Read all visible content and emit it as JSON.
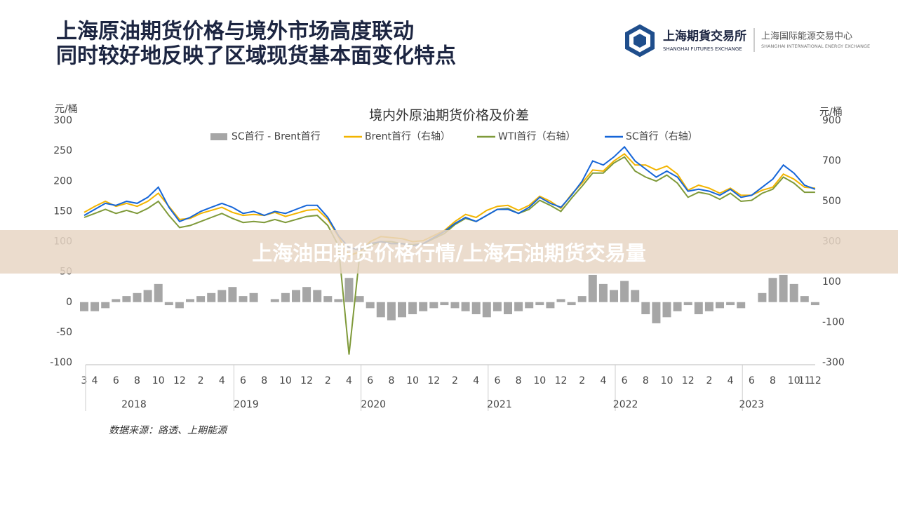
{
  "header": {
    "title_lines": [
      "上海原油期货价格与境外市场高度联动",
      "同时较好地反映了区域现货基本面变化特点"
    ],
    "logo_cn": "上海期貨交易所",
    "logo_en": "SHANGHAI FUTURES EXCHANGE",
    "ine_cn": "上海国际能源交易中心",
    "ine_en": "SHANGHAI INTERNATIONAL ENERGY EXCHANGE"
  },
  "chart_data": {
    "type": "combo",
    "title": "境内外原油期货价格及价差",
    "y_label": "元/桶",
    "y2_label": "元/桶",
    "categories": [
      "3",
      "4",
      null,
      "6",
      null,
      "8",
      null,
      "10",
      null,
      "12",
      null,
      "2",
      null,
      "4",
      null,
      "6",
      null,
      "8",
      null,
      "10",
      null,
      "12",
      null,
      "2",
      null,
      "4",
      null,
      "6",
      null,
      "8",
      null,
      "10",
      null,
      "12",
      null,
      "2",
      null,
      "4",
      null,
      "6",
      null,
      "8",
      null,
      "10",
      null,
      "12",
      null,
      "2",
      null,
      "4",
      null,
      "6",
      null,
      "8",
      null,
      "10",
      null,
      "12",
      null,
      "2",
      null,
      "4",
      null,
      "6",
      null,
      "8",
      null,
      "10",
      "11",
      "12"
    ],
    "years": [
      "2018",
      "2019",
      "2020",
      "2021",
      "2022",
      "2023"
    ],
    "ylim": [
      -100,
      300
    ],
    "yticks": [
      -100,
      -50,
      0,
      50,
      100,
      150,
      200,
      250,
      300
    ],
    "y2lim": [
      -300,
      900
    ],
    "y2ticks": [
      -300,
      -100,
      100,
      300,
      500,
      700,
      900
    ],
    "legend": "top",
    "series": [
      {
        "name": "SC首行 - Brent首行",
        "type": "bar",
        "color": "#a6a6a6",
        "values": [
          -15,
          -15,
          -10,
          5,
          10,
          15,
          20,
          30,
          -5,
          -10,
          5,
          10,
          15,
          20,
          25,
          10,
          15,
          0,
          5,
          15,
          20,
          25,
          20,
          10,
          5,
          40,
          10,
          -10,
          -25,
          -30,
          -25,
          -20,
          -15,
          -10,
          -5,
          -10,
          -15,
          -20,
          -25,
          -15,
          -20,
          -15,
          -10,
          -5,
          -10,
          5,
          -5,
          10,
          45,
          30,
          20,
          35,
          20,
          -20,
          -35,
          -25,
          -15,
          -5,
          -20,
          -15,
          -10,
          -5,
          -10,
          0,
          15,
          40,
          45,
          30,
          10,
          -5
        ]
      },
      {
        "name": "Brent首行（右轴）",
        "type": "line",
        "axis": "y2",
        "color": "#f2b400",
        "values": [
          445,
          475,
          500,
          475,
          490,
          475,
          500,
          540,
          475,
          410,
          415,
          440,
          455,
          470,
          445,
          430,
          435,
          430,
          445,
          425,
          440,
          455,
          460,
          410,
          325,
          230,
          250,
          300,
          325,
          320,
          315,
          300,
          305,
          330,
          355,
          400,
          435,
          420,
          455,
          475,
          480,
          455,
          480,
          525,
          500,
          465,
          535,
          590,
          655,
          650,
          700,
          735,
          680,
          680,
          655,
          675,
          635,
          555,
          580,
          565,
          540,
          565,
          530,
          530,
          555,
          570,
          635,
          610,
          570,
          565
        ]
      },
      {
        "name": "WTI首行（右轴）",
        "type": "line",
        "axis": "y2",
        "color": "#7f9a3a",
        "values": [
          420,
          440,
          460,
          440,
          455,
          440,
          465,
          500,
          430,
          370,
          380,
          400,
          420,
          440,
          415,
          395,
          400,
          395,
          410,
          395,
          410,
          425,
          430,
          380,
          280,
          -260,
          230,
          280,
          300,
          300,
          290,
          285,
          290,
          315,
          340,
          385,
          415,
          400,
          430,
          460,
          465,
          440,
          460,
          505,
          480,
          450,
          515,
          575,
          640,
          640,
          690,
          720,
          650,
          620,
          600,
          630,
          590,
          520,
          545,
          535,
          510,
          540,
          500,
          505,
          540,
          560,
          620,
          590,
          545,
          545
        ]
      },
      {
        "name": "SC首行（右轴）",
        "type": "line",
        "axis": "y2",
        "color": "#1565d8",
        "values": [
          430,
          460,
          490,
          480,
          500,
          490,
          520,
          570,
          470,
          400,
          420,
          450,
          470,
          490,
          470,
          440,
          450,
          430,
          450,
          440,
          460,
          480,
          480,
          420,
          330,
          270,
          260,
          290,
          300,
          290,
          290,
          280,
          290,
          320,
          350,
          390,
          420,
          400,
          430,
          460,
          460,
          440,
          470,
          520,
          490,
          470,
          530,
          600,
          700,
          680,
          720,
          770,
          700,
          660,
          620,
          650,
          620,
          550,
          560,
          550,
          530,
          560,
          520,
          530,
          570,
          610,
          680,
          640,
          580,
          560
        ]
      }
    ],
    "source": "数据来源：路透、上期能源"
  },
  "overlay_title": "上海油田期货价格行情/上海石油期货交易量"
}
